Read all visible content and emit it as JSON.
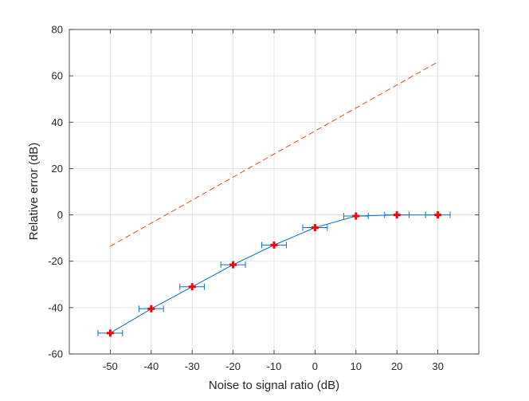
{
  "chart_data": {
    "type": "line",
    "xlabel": "Noise to signal ratio (dB)",
    "ylabel": "Relative error (dB)",
    "xlim": [
      -60,
      40
    ],
    "ylim": [
      -60,
      80
    ],
    "xticks": [
      -50,
      -40,
      -30,
      -20,
      -10,
      0,
      10,
      20,
      30
    ],
    "xtick_labels": [
      "-50",
      "-40",
      "-30",
      "-20",
      "-10",
      "0",
      "10",
      "20",
      "30"
    ],
    "yticks": [
      -60,
      -40,
      -20,
      0,
      20,
      40,
      60,
      80
    ],
    "ytick_labels": [
      "-60",
      "-40",
      "-20",
      "0",
      "20",
      "40",
      "60",
      "80"
    ],
    "grid": true,
    "series": [
      {
        "style": "solid line with red plus markers and horizontal error bars",
        "color": "#0072BD",
        "marker_color": "#FF0000",
        "x": [
          -50,
          -40,
          -30,
          -20,
          -10,
          0,
          10,
          20,
          30
        ],
        "y": [
          -51,
          -40.5,
          -31,
          -21.5,
          -13,
          -5.5,
          -0.5,
          0,
          0
        ],
        "x_error": [
          3,
          3,
          3,
          3,
          3,
          3,
          3,
          3,
          3
        ]
      },
      {
        "style": "dashed line",
        "color": "#D95319",
        "x": [
          -50,
          30
        ],
        "y": [
          -13.5,
          66
        ]
      }
    ]
  }
}
